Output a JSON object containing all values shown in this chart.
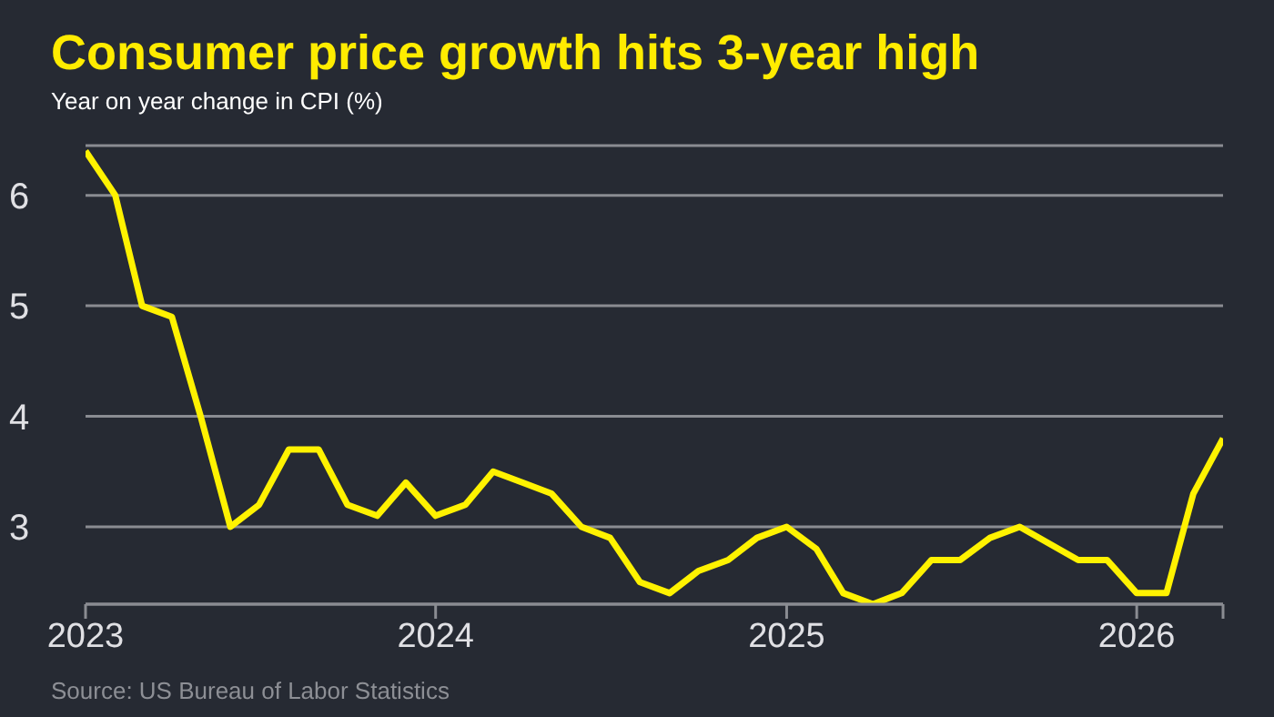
{
  "chart_data": {
    "type": "line",
    "title": "Consumer price growth hits 3-year high",
    "subtitle": "Year on year change in CPI (%)",
    "annotations": [
      "Source: US Bureau of Labor Statistics"
    ],
    "x": [
      "2023-01",
      "2023-02",
      "2023-03",
      "2023-04",
      "2023-05",
      "2023-06",
      "2023-07",
      "2023-08",
      "2023-09",
      "2023-10",
      "2023-11",
      "2023-12",
      "2024-01",
      "2024-02",
      "2024-03",
      "2024-04",
      "2024-05",
      "2024-06",
      "2024-07",
      "2024-08",
      "2024-09",
      "2024-10",
      "2024-11",
      "2024-12",
      "2025-01",
      "2025-02",
      "2025-03",
      "2025-04",
      "2025-05",
      "2025-06",
      "2025-07",
      "2025-08",
      "2025-09",
      "2025-11",
      "2025-12",
      "2026-01",
      "2026-02",
      "2026-03",
      "2026-04"
    ],
    "series": [
      {
        "color": "#fff200",
        "values": [
          6.4,
          6.0,
          5.0,
          4.9,
          4.0,
          3.0,
          3.2,
          3.7,
          3.7,
          3.2,
          3.1,
          3.4,
          3.1,
          3.2,
          3.5,
          3.4,
          3.3,
          3.0,
          2.9,
          2.5,
          2.4,
          2.6,
          2.7,
          2.9,
          3.0,
          2.8,
          2.4,
          2.3,
          2.4,
          2.7,
          2.7,
          2.9,
          3.0,
          2.7,
          2.7,
          2.4,
          2.4,
          3.3,
          3.8
        ]
      }
    ],
    "xlim": [
      "2023-01",
      "2026-04"
    ],
    "xticks": [
      {
        "value": "2023-01",
        "label": "2023"
      },
      {
        "value": "2024-01",
        "label": "2024"
      },
      {
        "value": "2025-01",
        "label": "2025"
      },
      {
        "value": "2026-01",
        "label": "2026"
      },
      {
        "value": "2026-04",
        "label": null
      }
    ],
    "ylim": [
      2.3,
      6.45
    ],
    "yticks": [
      3,
      4,
      5,
      6
    ],
    "grid": "y",
    "marker": "none",
    "line_style": "solid"
  }
}
